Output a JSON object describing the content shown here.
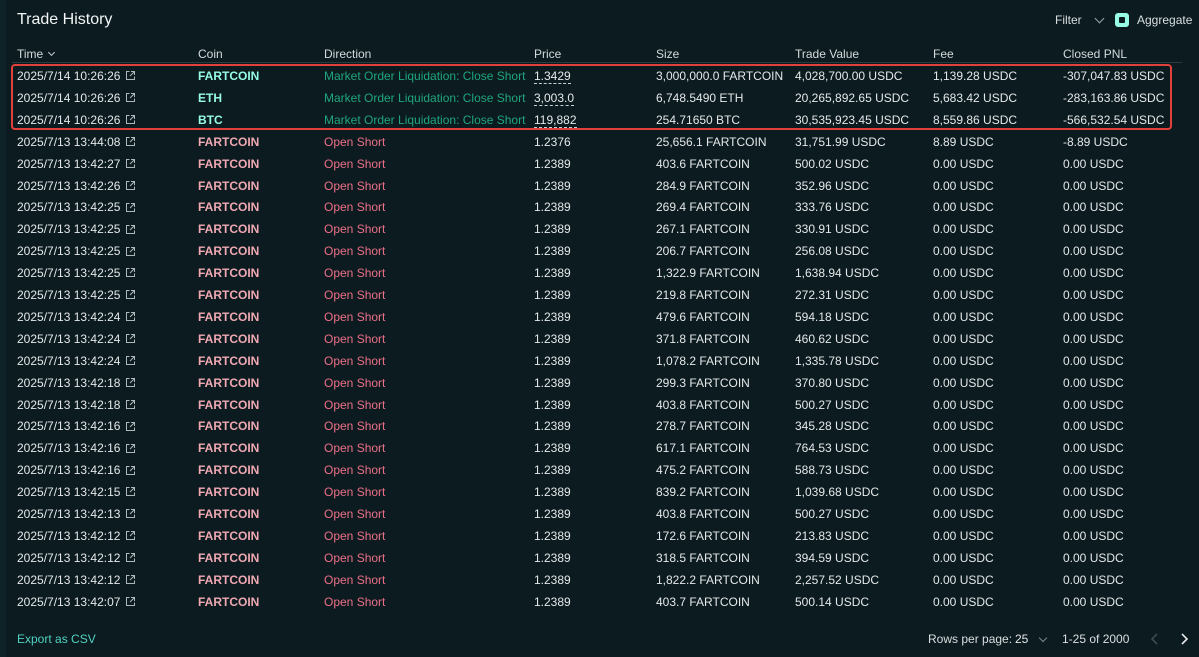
{
  "header": {
    "title": "Trade History",
    "filter_label": "Filter",
    "aggregate_label": "Aggregate"
  },
  "columns": [
    "Time",
    "Coin",
    "Direction",
    "Price",
    "Size",
    "Trade Value",
    "Fee",
    "Closed PNL"
  ],
  "rows": [
    {
      "time": "2025/7/14 10:26:26",
      "coin": "FARTCOIN",
      "direction": "Market Order Liquidation: Close Short",
      "price": "1.3429",
      "size": "3,000,000.0 FARTCOIN",
      "value": "4,028,700.00 USDC",
      "fee": "1,139.28 USDC",
      "pnl": "-307,047.83 USDC",
      "side": "close"
    },
    {
      "time": "2025/7/14 10:26:26",
      "coin": "ETH",
      "direction": "Market Order Liquidation: Close Short",
      "price": "3,003.0",
      "size": "6,748.5490 ETH",
      "value": "20,265,892.65 USDC",
      "fee": "5,683.42 USDC",
      "pnl": "-283,163.86 USDC",
      "side": "close"
    },
    {
      "time": "2025/7/14 10:26:26",
      "coin": "BTC",
      "direction": "Market Order Liquidation: Close Short",
      "price": "119,882",
      "size": "254.71650 BTC",
      "value": "30,535,923.45 USDC",
      "fee": "8,559.86 USDC",
      "pnl": "-566,532.54 USDC",
      "side": "close"
    },
    {
      "time": "2025/7/13 13:44:08",
      "coin": "FARTCOIN",
      "direction": "Open Short",
      "price": "1.2376",
      "size": "25,656.1 FARTCOIN",
      "value": "31,751.99 USDC",
      "fee": "8.89 USDC",
      "pnl": "-8.89 USDC",
      "side": "open"
    },
    {
      "time": "2025/7/13 13:42:27",
      "coin": "FARTCOIN",
      "direction": "Open Short",
      "price": "1.2389",
      "size": "403.6 FARTCOIN",
      "value": "500.02 USDC",
      "fee": "0.00 USDC",
      "pnl": "0.00 USDC",
      "side": "open"
    },
    {
      "time": "2025/7/13 13:42:26",
      "coin": "FARTCOIN",
      "direction": "Open Short",
      "price": "1.2389",
      "size": "284.9 FARTCOIN",
      "value": "352.96 USDC",
      "fee": "0.00 USDC",
      "pnl": "0.00 USDC",
      "side": "open"
    },
    {
      "time": "2025/7/13 13:42:25",
      "coin": "FARTCOIN",
      "direction": "Open Short",
      "price": "1.2389",
      "size": "269.4 FARTCOIN",
      "value": "333.76 USDC",
      "fee": "0.00 USDC",
      "pnl": "0.00 USDC",
      "side": "open"
    },
    {
      "time": "2025/7/13 13:42:25",
      "coin": "FARTCOIN",
      "direction": "Open Short",
      "price": "1.2389",
      "size": "267.1 FARTCOIN",
      "value": "330.91 USDC",
      "fee": "0.00 USDC",
      "pnl": "0.00 USDC",
      "side": "open"
    },
    {
      "time": "2025/7/13 13:42:25",
      "coin": "FARTCOIN",
      "direction": "Open Short",
      "price": "1.2389",
      "size": "206.7 FARTCOIN",
      "value": "256.08 USDC",
      "fee": "0.00 USDC",
      "pnl": "0.00 USDC",
      "side": "open"
    },
    {
      "time": "2025/7/13 13:42:25",
      "coin": "FARTCOIN",
      "direction": "Open Short",
      "price": "1.2389",
      "size": "1,322.9 FARTCOIN",
      "value": "1,638.94 USDC",
      "fee": "0.00 USDC",
      "pnl": "0.00 USDC",
      "side": "open"
    },
    {
      "time": "2025/7/13 13:42:25",
      "coin": "FARTCOIN",
      "direction": "Open Short",
      "price": "1.2389",
      "size": "219.8 FARTCOIN",
      "value": "272.31 USDC",
      "fee": "0.00 USDC",
      "pnl": "0.00 USDC",
      "side": "open"
    },
    {
      "time": "2025/7/13 13:42:24",
      "coin": "FARTCOIN",
      "direction": "Open Short",
      "price": "1.2389",
      "size": "479.6 FARTCOIN",
      "value": "594.18 USDC",
      "fee": "0.00 USDC",
      "pnl": "0.00 USDC",
      "side": "open"
    },
    {
      "time": "2025/7/13 13:42:24",
      "coin": "FARTCOIN",
      "direction": "Open Short",
      "price": "1.2389",
      "size": "371.8 FARTCOIN",
      "value": "460.62 USDC",
      "fee": "0.00 USDC",
      "pnl": "0.00 USDC",
      "side": "open"
    },
    {
      "time": "2025/7/13 13:42:24",
      "coin": "FARTCOIN",
      "direction": "Open Short",
      "price": "1.2389",
      "size": "1,078.2 FARTCOIN",
      "value": "1,335.78 USDC",
      "fee": "0.00 USDC",
      "pnl": "0.00 USDC",
      "side": "open"
    },
    {
      "time": "2025/7/13 13:42:18",
      "coin": "FARTCOIN",
      "direction": "Open Short",
      "price": "1.2389",
      "size": "299.3 FARTCOIN",
      "value": "370.80 USDC",
      "fee": "0.00 USDC",
      "pnl": "0.00 USDC",
      "side": "open"
    },
    {
      "time": "2025/7/13 13:42:18",
      "coin": "FARTCOIN",
      "direction": "Open Short",
      "price": "1.2389",
      "size": "403.8 FARTCOIN",
      "value": "500.27 USDC",
      "fee": "0.00 USDC",
      "pnl": "0.00 USDC",
      "side": "open"
    },
    {
      "time": "2025/7/13 13:42:16",
      "coin": "FARTCOIN",
      "direction": "Open Short",
      "price": "1.2389",
      "size": "278.7 FARTCOIN",
      "value": "345.28 USDC",
      "fee": "0.00 USDC",
      "pnl": "0.00 USDC",
      "side": "open"
    },
    {
      "time": "2025/7/13 13:42:16",
      "coin": "FARTCOIN",
      "direction": "Open Short",
      "price": "1.2389",
      "size": "617.1 FARTCOIN",
      "value": "764.53 USDC",
      "fee": "0.00 USDC",
      "pnl": "0.00 USDC",
      "side": "open"
    },
    {
      "time": "2025/7/13 13:42:16",
      "coin": "FARTCOIN",
      "direction": "Open Short",
      "price": "1.2389",
      "size": "475.2 FARTCOIN",
      "value": "588.73 USDC",
      "fee": "0.00 USDC",
      "pnl": "0.00 USDC",
      "side": "open"
    },
    {
      "time": "2025/7/13 13:42:15",
      "coin": "FARTCOIN",
      "direction": "Open Short",
      "price": "1.2389",
      "size": "839.2 FARTCOIN",
      "value": "1,039.68 USDC",
      "fee": "0.00 USDC",
      "pnl": "0.00 USDC",
      "side": "open"
    },
    {
      "time": "2025/7/13 13:42:13",
      "coin": "FARTCOIN",
      "direction": "Open Short",
      "price": "1.2389",
      "size": "403.8 FARTCOIN",
      "value": "500.27 USDC",
      "fee": "0.00 USDC",
      "pnl": "0.00 USDC",
      "side": "open"
    },
    {
      "time": "2025/7/13 13:42:12",
      "coin": "FARTCOIN",
      "direction": "Open Short",
      "price": "1.2389",
      "size": "172.6 FARTCOIN",
      "value": "213.83 USDC",
      "fee": "0.00 USDC",
      "pnl": "0.00 USDC",
      "side": "open"
    },
    {
      "time": "2025/7/13 13:42:12",
      "coin": "FARTCOIN",
      "direction": "Open Short",
      "price": "1.2389",
      "size": "318.5 FARTCOIN",
      "value": "394.59 USDC",
      "fee": "0.00 USDC",
      "pnl": "0.00 USDC",
      "side": "open"
    },
    {
      "time": "2025/7/13 13:42:12",
      "coin": "FARTCOIN",
      "direction": "Open Short",
      "price": "1.2389",
      "size": "1,822.2 FARTCOIN",
      "value": "2,257.52 USDC",
      "fee": "0.00 USDC",
      "pnl": "0.00 USDC",
      "side": "open"
    },
    {
      "time": "2025/7/13 13:42:07",
      "coin": "FARTCOIN",
      "direction": "Open Short",
      "price": "1.2389",
      "size": "403.7 FARTCOIN",
      "value": "500.14 USDC",
      "fee": "0.00 USDC",
      "pnl": "0.00 USDC",
      "side": "open"
    }
  ],
  "footer": {
    "export_label": "Export as CSV",
    "rows_per_page_label": "Rows per page:",
    "rows_per_page_value": "25",
    "range_label": "1-25 of 2000"
  },
  "icons": {
    "sort": "chevron-down-icon",
    "explorer_link": "external-link-icon",
    "prev": "chevron-left-icon",
    "next": "chevron-right-icon"
  },
  "colors": {
    "background": "#0c1b20",
    "accent": "#97fce4",
    "close_direction": "#1fa67d",
    "open_direction": "#ed7088",
    "short_coin": "#f0a9b3",
    "highlight_border": "#e2413b",
    "link": "#50d2c1"
  }
}
